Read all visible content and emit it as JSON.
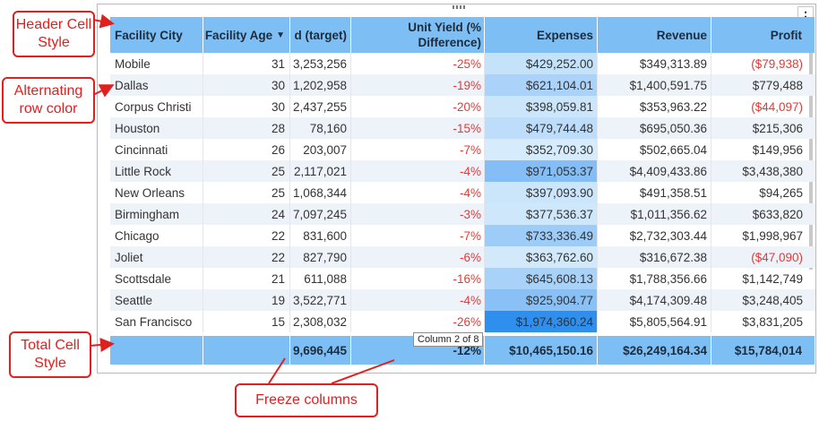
{
  "table": {
    "header": {
      "facility_city": "Facility City",
      "facility_age": "Facility Age",
      "sort_icon": "▼",
      "target": "d (target)",
      "unit_yield": "Unit Yield (% Difference)",
      "expenses": "Expenses",
      "revenue": "Revenue",
      "profit": "Profit"
    },
    "rows": [
      {
        "city": "Mobile",
        "age": "31",
        "target": "3,253,256",
        "yield": "-25%",
        "expenses": "$429,252.00",
        "revenue": "$349,313.89",
        "profit": "($79,938)"
      },
      {
        "city": "Dallas",
        "age": "30",
        "target": "1,202,958",
        "yield": "-19%",
        "expenses": "$621,104.01",
        "revenue": "$1,400,591.75",
        "profit": "$779,488"
      },
      {
        "city": "Corpus Christi",
        "age": "30",
        "target": "2,437,255",
        "yield": "-20%",
        "expenses": "$398,059.81",
        "revenue": "$353,963.22",
        "profit": "($44,097)"
      },
      {
        "city": "Houston",
        "age": "28",
        "target": "78,160",
        "yield": "-15%",
        "expenses": "$479,744.48",
        "revenue": "$695,050.36",
        "profit": "$215,306"
      },
      {
        "city": "Cincinnati",
        "age": "26",
        "target": "203,007",
        "yield": "-7%",
        "expenses": "$352,709.30",
        "revenue": "$502,665.04",
        "profit": "$149,956"
      },
      {
        "city": "Little Rock",
        "age": "25",
        "target": "2,117,021",
        "yield": "-4%",
        "expenses": "$971,053.37",
        "revenue": "$4,409,433.86",
        "profit": "$3,438,380"
      },
      {
        "city": "New Orleans",
        "age": "25",
        "target": "1,068,344",
        "yield": "-4%",
        "expenses": "$397,093.90",
        "revenue": "$491,358.51",
        "profit": "$94,265"
      },
      {
        "city": "Birmingham",
        "age": "24",
        "target": "7,097,245",
        "yield": "-3%",
        "expenses": "$377,536.37",
        "revenue": "$1,011,356.62",
        "profit": "$633,820"
      },
      {
        "city": "Chicago",
        "age": "22",
        "target": "831,600",
        "yield": "-7%",
        "expenses": "$733,336.49",
        "revenue": "$2,732,303.44",
        "profit": "$1,998,967"
      },
      {
        "city": "Joliet",
        "age": "22",
        "target": "827,790",
        "yield": "-6%",
        "expenses": "$363,762.60",
        "revenue": "$316,672.38",
        "profit": "($47,090)"
      },
      {
        "city": "Scottsdale",
        "age": "21",
        "target": "611,088",
        "yield": "-16%",
        "expenses": "$645,608.13",
        "revenue": "$1,788,356.66",
        "profit": "$1,142,749"
      },
      {
        "city": "Seattle",
        "age": "19",
        "target": "3,522,771",
        "yield": "-4%",
        "expenses": "$925,904.77",
        "revenue": "$4,174,309.48",
        "profit": "$3,248,405"
      },
      {
        "city": "San Francisco",
        "age": "15",
        "target": "2,308,032",
        "yield": "-26%",
        "expenses": "$1,974,360.24",
        "revenue": "$5,805,564.91",
        "profit": "$3,831,205"
      }
    ],
    "total": {
      "target": "9,696,445",
      "yield": "-12%",
      "expenses": "$10,465,150.16",
      "revenue": "$26,249,164.34",
      "profit": "$15,784,014"
    },
    "tooltip": "Column 2 of 8"
  },
  "callouts": {
    "header": "Header Cell Style",
    "alternating": "Alternating row color",
    "total": "Total Cell Style",
    "freeze": "Freeze columns"
  },
  "colors": {
    "header_bg": "#7dbff5",
    "alt_row": "#eef3fa",
    "negative": "#e53935",
    "callout": "#e01f1f",
    "expense_scale_low": "#d6ebfc",
    "expense_scale_high": "#2f8fef"
  },
  "icons": {
    "sort": "sort-descending-icon",
    "menu": "more-vertical-icon"
  }
}
